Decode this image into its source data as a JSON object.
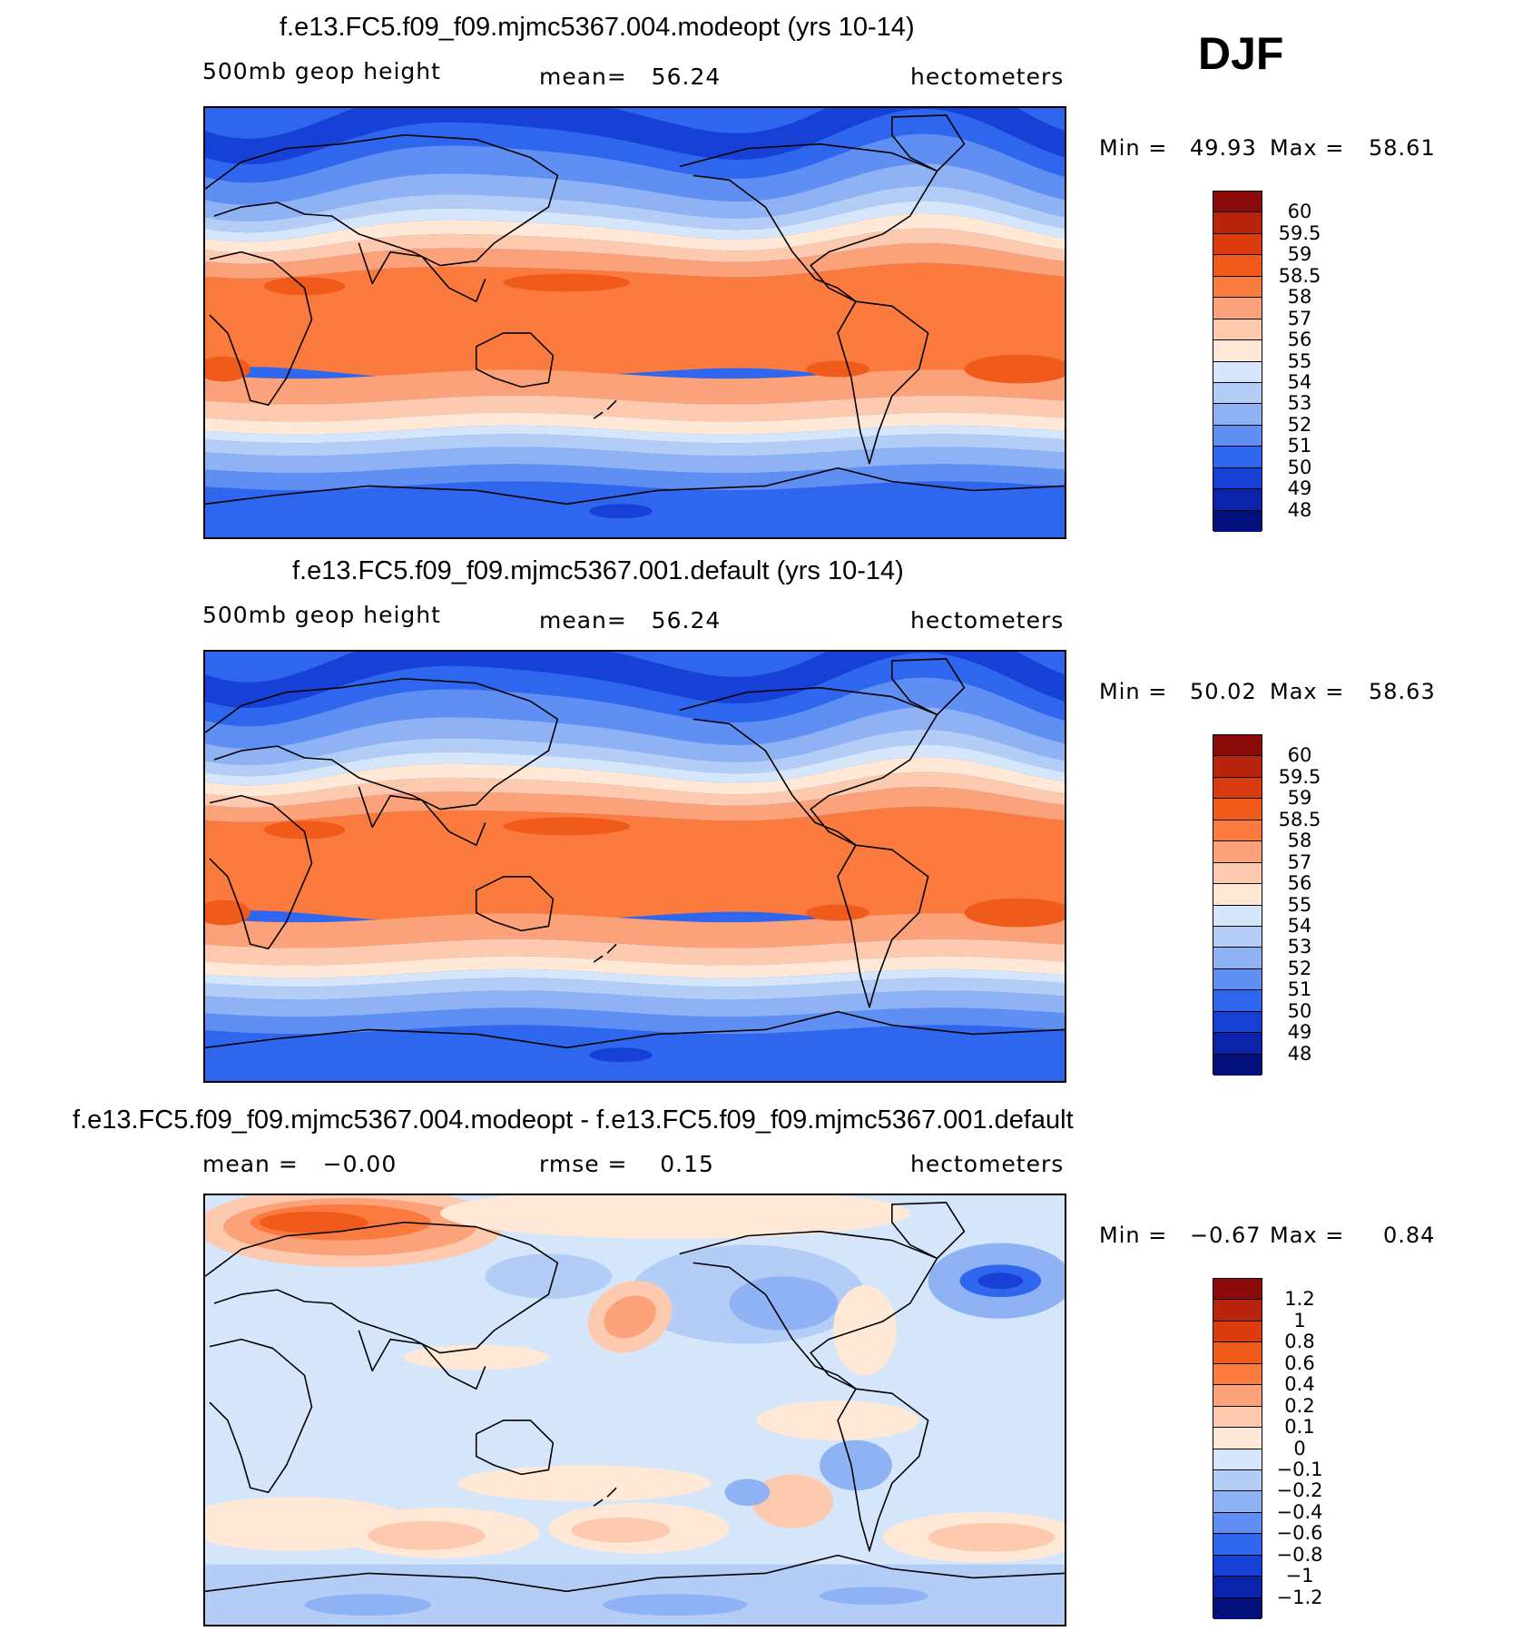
{
  "season": "DJF",
  "panels": [
    {
      "title": "f.e13.FC5.f09_f09.mjmc5367.004.modeopt (yrs 10-14)",
      "variable": "500mb geop height",
      "stat1": "mean=   56.24",
      "units": "hectometers",
      "min_label": "Min =",
      "min_value": "49.93",
      "max_label": "Max =",
      "max_value": "58.61",
      "colorbar": {
        "labels": [
          "60",
          "59.5",
          "59",
          "58.5",
          "58",
          "57",
          "56",
          "55",
          "54",
          "53",
          "52",
          "51",
          "50",
          "49",
          "48"
        ],
        "colors": [
          "#8b0a0a",
          "#b8240c",
          "#dc3a0f",
          "#f05a1a",
          "#fb7b3e",
          "#fca27a",
          "#fdcaaf",
          "#ffe9d6",
          "#d6e6fa",
          "#b4cdf7",
          "#8fb2f5",
          "#5f8ff2",
          "#2f66ee",
          "#1640d6",
          "#0a23a8",
          "#030f7a"
        ]
      },
      "field": "height"
    },
    {
      "title": "f.e13.FC5.f09_f09.mjmc5367.001.default (yrs 10-14)",
      "variable": "500mb geop height",
      "stat1": "mean=   56.24",
      "units": "hectometers",
      "min_label": "Min =",
      "min_value": "50.02",
      "max_label": "Max =",
      "max_value": "58.63",
      "colorbar": {
        "labels": [
          "60",
          "59.5",
          "59",
          "58.5",
          "58",
          "57",
          "56",
          "55",
          "54",
          "53",
          "52",
          "51",
          "50",
          "49",
          "48"
        ],
        "colors": [
          "#8b0a0a",
          "#b8240c",
          "#dc3a0f",
          "#f05a1a",
          "#fb7b3e",
          "#fca27a",
          "#fdcaaf",
          "#ffe9d6",
          "#d6e6fa",
          "#b4cdf7",
          "#8fb2f5",
          "#5f8ff2",
          "#2f66ee",
          "#1640d6",
          "#0a23a8",
          "#030f7a"
        ]
      },
      "field": "height"
    },
    {
      "title": "f.e13.FC5.f09_f09.mjmc5367.004.modeopt - f.e13.FC5.f09_f09.mjmc5367.001.default",
      "variable": "mean =   −0.00",
      "stat1": "rmse =    0.15",
      "units": "hectometers",
      "min_label": "Min =",
      "min_value": "−0.67",
      "max_label": "Max =",
      "max_value": "0.84",
      "colorbar": {
        "labels": [
          "1.2",
          "1",
          "0.8",
          "0.6",
          "0.4",
          "0.2",
          "0.1",
          "0",
          "−0.1",
          "−0.2",
          "−0.4",
          "−0.6",
          "−0.8",
          "−1",
          "−1.2"
        ],
        "colors": [
          "#8b0a0a",
          "#b8240c",
          "#dc3a0f",
          "#f05a1a",
          "#fb7b3e",
          "#fca27a",
          "#fdcaaf",
          "#ffe9d6",
          "#d6e6fa",
          "#b4cdf7",
          "#8fb2f5",
          "#5f8ff2",
          "#2f66ee",
          "#1640d6",
          "#0a23a8",
          "#030f7a"
        ]
      },
      "field": "difference"
    }
  ]
}
